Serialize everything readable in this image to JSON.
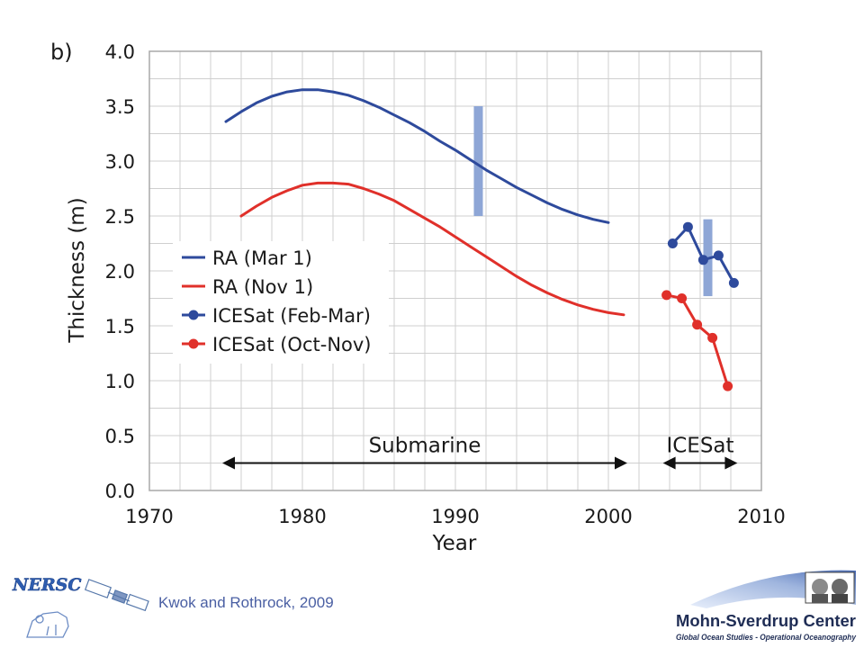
{
  "panel_label": "b)",
  "citation": "Kwok and Rothrock, 2009",
  "logos": {
    "left_text": "NERSC",
    "right_title": "Mohn-Sverdrup Center",
    "right_subtitle": "Global Ocean Studies - Operational Oceanography"
  },
  "colors": {
    "blue": "#2e4a9c",
    "red": "#e0302a",
    "band": "#8ea6d6",
    "grid": "#cfcfcf",
    "frame": "#a8a8a8"
  },
  "chart_data": {
    "type": "line",
    "xlabel": "Year",
    "ylabel": "Thickness (m)",
    "xlim": [
      1970,
      2010
    ],
    "ylim": [
      0.0,
      4.0
    ],
    "x_ticks": [
      1970,
      1980,
      1990,
      2000,
      2010
    ],
    "x_tick_labels": [
      "1970",
      "1980",
      "1990",
      "2000",
      "2010"
    ],
    "y_ticks": [
      0.0,
      0.5,
      1.0,
      1.5,
      2.0,
      2.5,
      3.0,
      3.5,
      4.0
    ],
    "y_tick_labels": [
      "0.0",
      "0.5",
      "1.0",
      "1.5",
      "2.0",
      "2.5",
      "3.0",
      "3.5",
      "4.0"
    ],
    "grid": true,
    "legend_position": "left-middle",
    "series": [
      {
        "name": "RA (Mar 1)",
        "style": "line",
        "color": "#2e4a9c",
        "x": [
          1975,
          1976,
          1977,
          1978,
          1979,
          1980,
          1981,
          1982,
          1983,
          1984,
          1985,
          1986,
          1987,
          1988,
          1989,
          1990,
          1991,
          1992,
          1993,
          1994,
          1995,
          1996,
          1997,
          1998,
          1999,
          2000
        ],
        "y": [
          3.36,
          3.45,
          3.53,
          3.59,
          3.63,
          3.65,
          3.65,
          3.63,
          3.6,
          3.55,
          3.49,
          3.42,
          3.35,
          3.27,
          3.18,
          3.1,
          3.01,
          2.92,
          2.84,
          2.76,
          2.69,
          2.62,
          2.56,
          2.51,
          2.47,
          2.44
        ]
      },
      {
        "name": "RA (Nov 1)",
        "style": "line",
        "color": "#e0302a",
        "x": [
          1976,
          1977,
          1978,
          1979,
          1980,
          1981,
          1982,
          1983,
          1984,
          1985,
          1986,
          1987,
          1988,
          1989,
          1990,
          1991,
          1992,
          1993,
          1994,
          1995,
          1996,
          1997,
          1998,
          1999,
          2000,
          2001
        ],
        "y": [
          2.5,
          2.59,
          2.67,
          2.73,
          2.78,
          2.8,
          2.8,
          2.79,
          2.75,
          2.7,
          2.64,
          2.56,
          2.48,
          2.4,
          2.31,
          2.22,
          2.13,
          2.04,
          1.95,
          1.87,
          1.8,
          1.74,
          1.69,
          1.65,
          1.62,
          1.6
        ]
      },
      {
        "name": "ICESat (Feb-Mar)",
        "style": "line-markers",
        "color": "#2e4a9c",
        "x": [
          2004.2,
          2005.2,
          2006.2,
          2007.2,
          2008.2
        ],
        "y": [
          2.25,
          2.4,
          2.1,
          2.14,
          1.89
        ]
      },
      {
        "name": "ICESat (Oct-Nov)",
        "style": "line-markers",
        "color": "#e0302a",
        "x": [
          2003.8,
          2004.8,
          2005.8,
          2006.8,
          2007.8
        ],
        "y": [
          1.78,
          1.75,
          1.51,
          1.39,
          0.95
        ]
      }
    ],
    "error_bands": [
      {
        "x": 1991.5,
        "y_low": 2.5,
        "y_high": 3.5
      },
      {
        "x": 2006.5,
        "y_low": 1.77,
        "y_high": 2.47
      }
    ],
    "ranges": [
      {
        "label": "Submarine",
        "x_start": 1975,
        "x_end": 2001,
        "y": 0.25
      },
      {
        "label": "ICESat",
        "x_start": 2003.8,
        "x_end": 2008.2,
        "y": 0.25
      }
    ]
  }
}
